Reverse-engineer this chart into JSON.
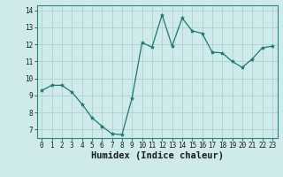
{
  "x": [
    0,
    1,
    2,
    3,
    4,
    5,
    6,
    7,
    8,
    9,
    10,
    11,
    12,
    13,
    14,
    15,
    16,
    17,
    18,
    19,
    20,
    21,
    22,
    23
  ],
  "y": [
    9.3,
    9.6,
    9.6,
    9.2,
    8.5,
    7.7,
    7.2,
    6.75,
    6.7,
    8.85,
    12.1,
    11.85,
    13.75,
    11.9,
    13.55,
    12.8,
    12.65,
    11.55,
    11.5,
    11.0,
    10.65,
    11.15,
    11.8,
    11.9
  ],
  "xlabel": "Humidex (Indice chaleur)",
  "ylim": [
    6.5,
    14.3
  ],
  "xlim": [
    -0.5,
    23.5
  ],
  "yticks": [
    7,
    8,
    9,
    10,
    11,
    12,
    13,
    14
  ],
  "xticks": [
    0,
    1,
    2,
    3,
    4,
    5,
    6,
    7,
    8,
    9,
    10,
    11,
    12,
    13,
    14,
    15,
    16,
    17,
    18,
    19,
    20,
    21,
    22,
    23
  ],
  "line_color": "#1a7a6e",
  "marker": "*",
  "marker_size": 3.0,
  "bg_color": "#ceeaea",
  "grid_color": "#afd0d0",
  "tick_fontsize": 5.5,
  "xlabel_fontsize": 7.5
}
